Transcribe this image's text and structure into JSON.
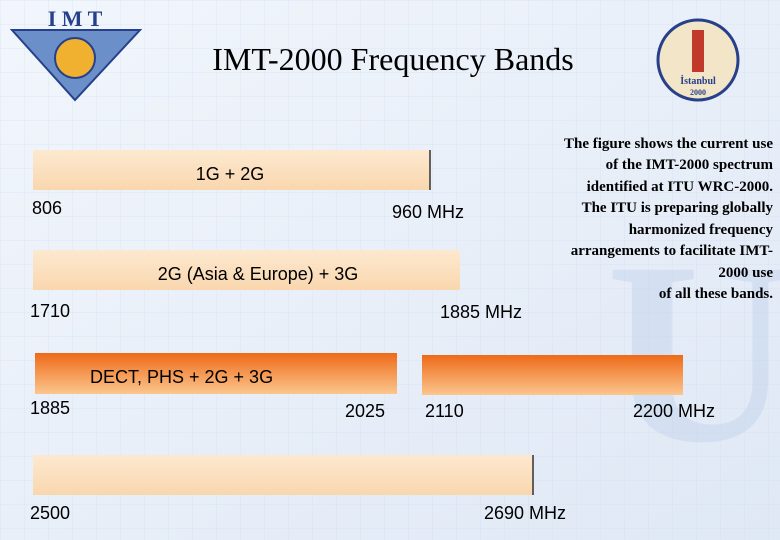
{
  "header": {
    "title": "IMT-2000 Frequency Bands"
  },
  "logos": {
    "left": "I M T",
    "right": [
      "İstanbul",
      "2000"
    ]
  },
  "note": {
    "lines": [
      "The figure shows the current use",
      "of the IMT-2000 spectrum",
      "identified at ITU WRC-2000.",
      "The ITU is preparing globally",
      "harmonized frequency",
      "arrangements to facilitate IMT-",
      "2000 use",
      "of all these bands."
    ]
  },
  "bands": [
    {
      "label": "1G + 2G",
      "start": "806",
      "end": "960 MHz"
    },
    {
      "label": "2G (Asia & Europe) + 3G",
      "start": "1710",
      "end": "1885 MHz"
    },
    {
      "label": "DECT, PHS + 2G + 3G",
      "start": "1885",
      "end": "2025"
    },
    {
      "start": "2110",
      "end": "2200 MHz"
    },
    {
      "start": "2500",
      "end": "2690 MHz"
    }
  ]
}
